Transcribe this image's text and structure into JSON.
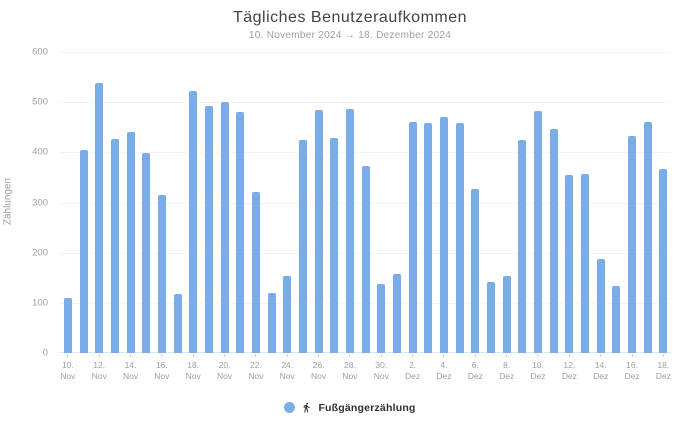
{
  "chart_data": {
    "type": "bar",
    "title": "Tägliches Benutzeraufkommen",
    "subtitle": "10. November 2024 → 18. Dezember 2024",
    "ylabel": "Zählungen",
    "xlabel": "",
    "ylim": [
      0,
      600
    ],
    "ytick_interval": 100,
    "grid": true,
    "xtick_every": 2,
    "bar_color": "#7AADE8",
    "legend": {
      "label": "Fußgängerzählung",
      "icon": "pedestrian-icon",
      "dot_color": "#7AADE8",
      "position": "bottom"
    },
    "categories": [
      "10. Nov",
      "11. Nov",
      "12. Nov",
      "13. Nov",
      "14. Nov",
      "15. Nov",
      "16. Nov",
      "17. Nov",
      "18. Nov",
      "19. Nov",
      "20. Nov",
      "21. Nov",
      "22. Nov",
      "23. Nov",
      "24. Nov",
      "25. Nov",
      "26. Nov",
      "27. Nov",
      "28. Nov",
      "29. Nov",
      "30. Nov",
      "1. Dez",
      "2. Dez",
      "3. Dez",
      "4. Dez",
      "5. Dez",
      "6. Dez",
      "7. Dez",
      "8. Dez",
      "9. Dez",
      "10. Dez",
      "11. Dez",
      "12. Dez",
      "13. Dez",
      "14. Dez",
      "15. Dez",
      "16. Dez",
      "17. Dez",
      "18. Dez"
    ],
    "values": [
      110,
      404,
      538,
      427,
      441,
      398,
      315,
      118,
      523,
      492,
      500,
      481,
      320,
      119,
      153,
      424,
      485,
      429,
      486,
      372,
      137,
      158,
      460,
      458,
      471,
      459,
      327,
      142,
      154,
      425,
      483,
      447,
      354,
      356,
      188,
      134,
      432,
      461,
      367
    ]
  },
  "colors": {
    "title_text": "#3e434a",
    "muted_text": "#9aa0a6",
    "gridline": "#f1f3f4",
    "axis_line": "#e3e6e9",
    "legend_text": "#2d2f33"
  }
}
